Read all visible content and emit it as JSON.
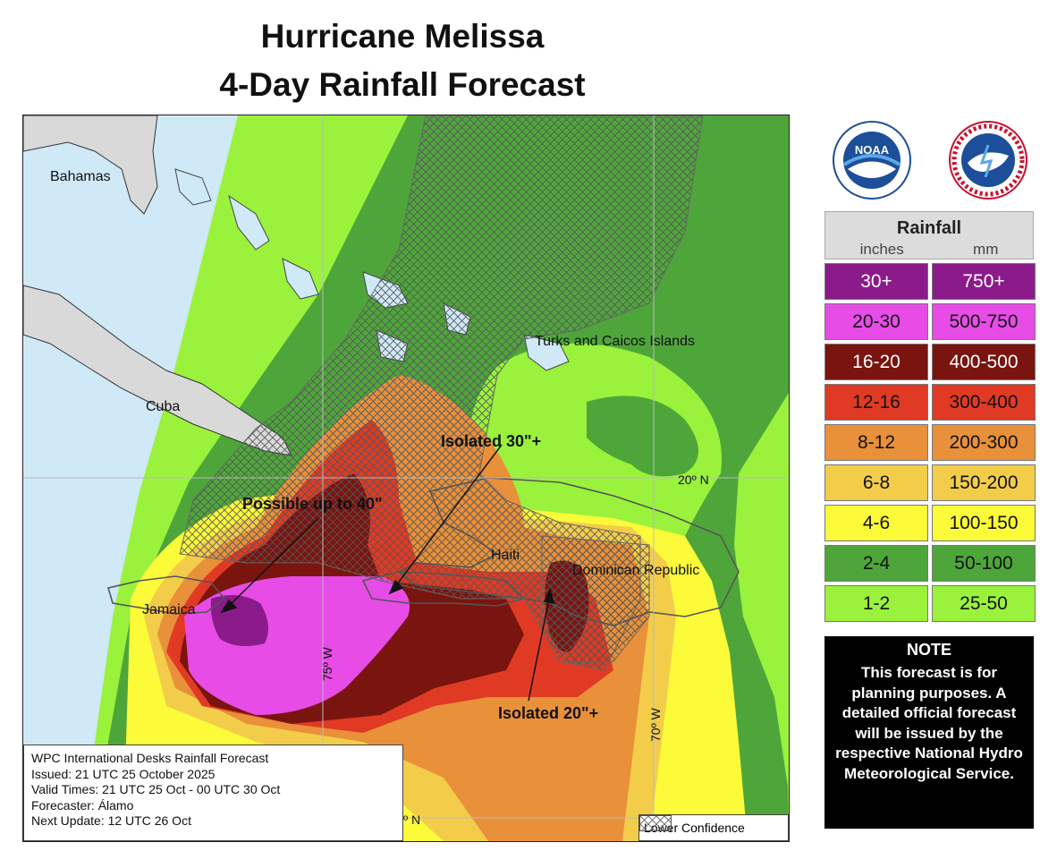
{
  "title": {
    "line1": "Hurricane Melissa",
    "line2": "4-Day Rainfall Forecast"
  },
  "map": {
    "place_labels": {
      "bahamas": "Bahamas",
      "cuba": "Cuba",
      "turks_caicos": "Turks and Caicos Islands",
      "haiti": "Haiti",
      "dominican_republic": "Dominican Republic",
      "jamaica": "Jamaica"
    },
    "grid_labels": {
      "lat20": "20º N",
      "lon75": "75º W",
      "lon70": "70º W",
      "lat_bottom": "º N"
    },
    "annotations": {
      "isolated30": "Isolated 30\"+",
      "possible40": "Possible up to 40\"",
      "isolated20": "Isolated 20\"+"
    }
  },
  "info_box": {
    "line1": "WPC International Desks Rainfall Forecast",
    "line2": "Issued: 21 UTC 25 October 2025",
    "line3": "Valid Times: 21 UTC 25 Oct - 00 UTC 30 Oct",
    "line4": "Forecaster: Álamo",
    "line5": "Next Update: 12 UTC 26 Oct"
  },
  "lower_confidence_label": "Lower Confidence",
  "logos": {
    "noaa_text": "NOAA",
    "nws_icon": "nws-logo",
    "noaa_icon": "noaa-logo"
  },
  "legend": {
    "title": "Rainfall",
    "unit_inches": "inches",
    "unit_mm": "mm",
    "rows": [
      {
        "inches": "30+",
        "mm": "750+",
        "color": "#8b1a8b",
        "text_color": "#ffffff"
      },
      {
        "inches": "20-30",
        "mm": "500-750",
        "color": "#e74ce7",
        "text_color": "#111111"
      },
      {
        "inches": "16-20",
        "mm": "400-500",
        "color": "#7a140f",
        "text_color": "#ffffff"
      },
      {
        "inches": "12-16",
        "mm": "300-400",
        "color": "#e03a24",
        "text_color": "#111111"
      },
      {
        "inches": "8-12",
        "mm": "200-300",
        "color": "#e8903a",
        "text_color": "#111111"
      },
      {
        "inches": "6-8",
        "mm": "150-200",
        "color": "#f3cd4a",
        "text_color": "#111111"
      },
      {
        "inches": "4-6",
        "mm": "100-150",
        "color": "#fbfb3a",
        "text_color": "#111111"
      },
      {
        "inches": "2-4",
        "mm": "50-100",
        "color": "#4ea63a",
        "text_color": "#111111"
      },
      {
        "inches": "1-2",
        "mm": "25-50",
        "color": "#9af23c",
        "text_color": "#111111"
      }
    ]
  },
  "note": {
    "title": "NOTE",
    "text": "This forecast is for planning purposes. A detailed official forecast will be issued by the respective National Hydro Meteorological Service."
  }
}
